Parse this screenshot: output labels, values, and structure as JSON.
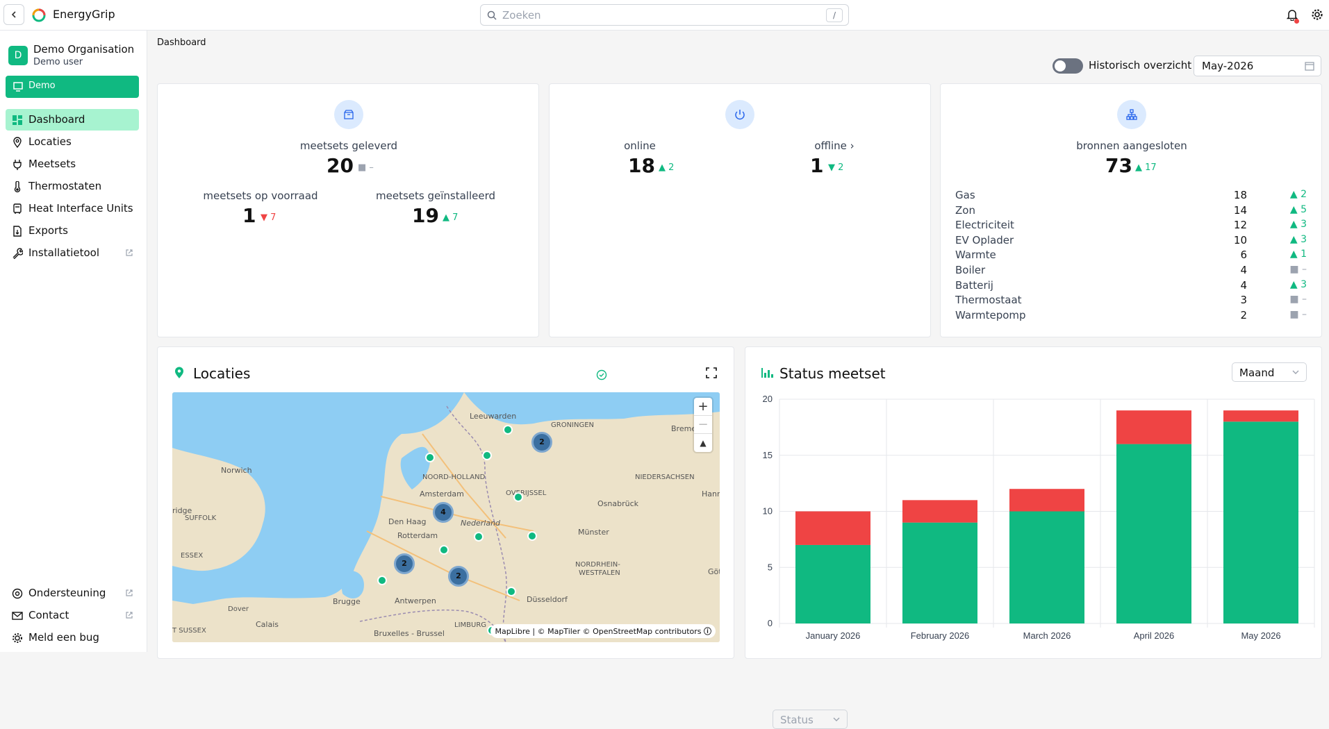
{
  "app": {
    "name": "EnergyGrip"
  },
  "search": {
    "placeholder": "Zoeken",
    "shortcut": "/"
  },
  "org": {
    "initial": "D",
    "name": "Demo Organisation",
    "user": "Demo user"
  },
  "demo_button": "Demo",
  "nav": [
    {
      "label": "Dashboard",
      "icon": "dashboard-icon",
      "active": true
    },
    {
      "label": "Locaties",
      "icon": "map-pin-icon"
    },
    {
      "label": "Meetsets",
      "icon": "plug-icon"
    },
    {
      "label": "Thermostaten",
      "icon": "thermometer-icon"
    },
    {
      "label": "Heat Interface Units",
      "icon": "hiu-icon"
    },
    {
      "label": "Exports",
      "icon": "file-export-icon"
    },
    {
      "label": "Installatietool",
      "icon": "wrench-icon",
      "external": true
    }
  ],
  "nav_bottom": [
    {
      "label": "Ondersteuning",
      "icon": "help-icon",
      "external": true
    },
    {
      "label": "Contact",
      "icon": "mail-icon",
      "external": true
    },
    {
      "label": "Meld een bug",
      "icon": "bug-icon"
    }
  ],
  "breadcrumb": "Dashboard",
  "historic_toggle": {
    "label": "Historisch overzicht",
    "on": false
  },
  "month_picker": "May-2026",
  "card_meetsets": {
    "delivered_label": "meetsets geleverd",
    "delivered": "20",
    "delivered_delta": "–",
    "stock_label": "meetsets op voorraad",
    "stock": "1",
    "stock_delta": "7",
    "installed_label": "meetsets geïnstalleerd",
    "installed": "19",
    "installed_delta": "7"
  },
  "card_online": {
    "online_label": "online",
    "online": "18",
    "online_delta": "2",
    "offline_label": "offline",
    "offline": "1",
    "offline_delta": "2"
  },
  "card_sources": {
    "label": "bronnen aangesloten",
    "total": "73",
    "total_delta": "17",
    "rows": [
      {
        "name": "Gas",
        "count": "18",
        "delta": "2",
        "trend": "up"
      },
      {
        "name": "Zon",
        "count": "14",
        "delta": "5",
        "trend": "up"
      },
      {
        "name": "Electriciteit",
        "count": "12",
        "delta": "3",
        "trend": "up"
      },
      {
        "name": "EV Oplader",
        "count": "10",
        "delta": "3",
        "trend": "up"
      },
      {
        "name": "Warmte",
        "count": "6",
        "delta": "1",
        "trend": "up"
      },
      {
        "name": "Boiler",
        "count": "4",
        "delta": "–",
        "trend": "none"
      },
      {
        "name": "Batterij",
        "count": "4",
        "delta": "3",
        "trend": "up"
      },
      {
        "name": "Thermostaat",
        "count": "3",
        "delta": "–",
        "trend": "none"
      },
      {
        "name": "Warmtepomp",
        "count": "2",
        "delta": "–",
        "trend": "none"
      }
    ]
  },
  "locations": {
    "title": "Locaties",
    "status_placeholder": "Status",
    "attribution": "MapLibre | © MapTiler © OpenStreetMap contributors",
    "map_labels": [
      "Leeuwarden",
      "GRONINGEN",
      "Bremen",
      "Norwich",
      "NOORD-HOLLAND",
      "NIEDERSACHSEN",
      "Amsterdam",
      "OVERIJSSEL",
      "ridge",
      "SUFFOLK",
      "Den Haag",
      "Nederland",
      "Osnabrück",
      "Hanno",
      "Rotterdam",
      "Münster",
      "ESSEX",
      "NORDRHEIN-",
      "WESTFALEN",
      "Dover",
      "Brugge",
      "Antwerpen",
      "Düsseldorf",
      "Calais",
      "T SUSSEX",
      "Bruxelles - Brussel",
      "LIMBURG",
      "Göt"
    ],
    "clusters": [
      "2",
      "4",
      "2",
      "2"
    ]
  },
  "status_chart": {
    "title": "Status meetset",
    "period": "Maand",
    "colors": {
      "online": "#10b981",
      "offline": "#ef4444"
    }
  },
  "chart_data": {
    "type": "bar",
    "stacked": true,
    "categories": [
      "January 2026",
      "February 2026",
      "March 2026",
      "April 2026",
      "May 2026"
    ],
    "series": [
      {
        "values": [
          7,
          9,
          10,
          16,
          18
        ]
      },
      {
        "values": [
          3,
          2,
          2,
          3,
          1
        ]
      }
    ],
    "ylim": [
      0,
      20
    ],
    "yticks": [
      0,
      5,
      10,
      15,
      20
    ],
    "grid": true
  }
}
